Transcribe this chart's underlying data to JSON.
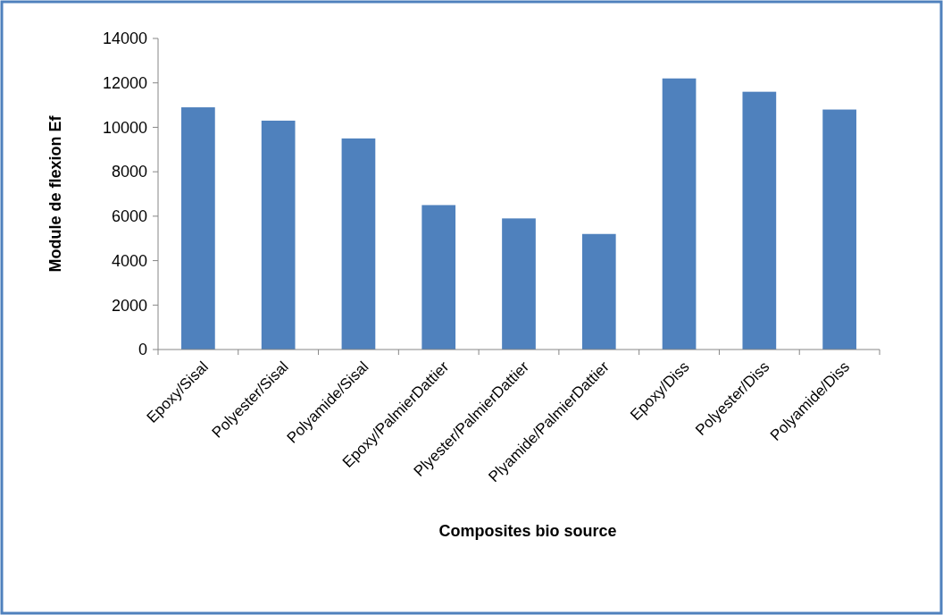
{
  "chart_data": {
    "type": "bar",
    "xlabel": "Composites bio source",
    "ylabel": "Module de flexion Ef",
    "categories": [
      "Epoxy/Sisal",
      "Polyester/Sisal",
      "Polyamide/Sisal",
      "Epoxy/PalmierDattier",
      "Plyester/PalmierDattier",
      "Plyamide/PalmierDattier",
      "Epoxy/Diss",
      "Polyester/Diss",
      "Polyamide/Diss"
    ],
    "values": [
      10900,
      10300,
      9500,
      6500,
      5900,
      5200,
      12200,
      11600,
      10800
    ],
    "color": "#4f81bd",
    "ylim": [
      0,
      14000
    ],
    "yticks": [
      0,
      2000,
      4000,
      6000,
      8000,
      10000,
      12000,
      14000
    ],
    "grid": false
  }
}
